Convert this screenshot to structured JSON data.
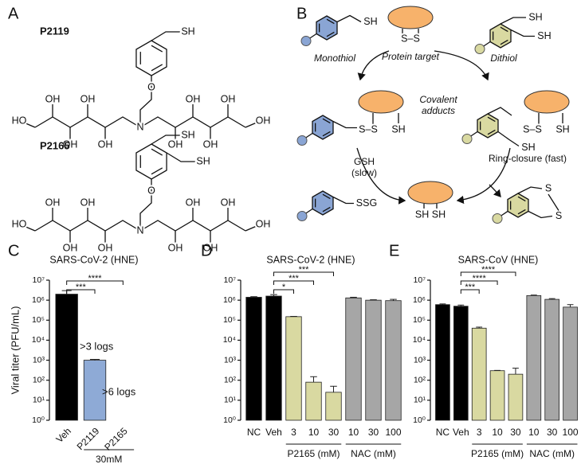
{
  "figure": {
    "A": {
      "panel_label": "A",
      "molecules": [
        {
          "name": "P2119",
          "thiols": [
            "SH"
          ],
          "linker": "O",
          "amine": "N",
          "left_hydroxyls": [
            "HO",
            "OH",
            "OH",
            "OH",
            "OH"
          ],
          "right_hydroxyls": [
            "OH",
            "OH",
            "OH",
            "OH",
            "OH"
          ]
        },
        {
          "name": "P2165",
          "thiols": [
            "SH",
            "SH"
          ],
          "linker": "O",
          "amine": "N",
          "left_hydroxyls": [
            "HO",
            "OH",
            "OH",
            "OH",
            "OH"
          ],
          "right_hydroxyls": [
            "OH",
            "OH",
            "OH",
            "OH",
            "OH"
          ]
        }
      ]
    },
    "B": {
      "panel_label": "B",
      "labels": [
        "SH",
        "Monothiol",
        "Protein target",
        "S–S",
        "SH",
        "SH",
        "Dithiol",
        "S–S",
        "SH",
        "S–S",
        "SH",
        "SH",
        "SSG",
        "SH SH",
        "S",
        "S"
      ],
      "notes": [
        "Covalent adducts",
        "GSH (slow)",
        "Ring-closure (fast)"
      ]
    }
  },
  "chart_data": [
    {
      "type": "bar",
      "panel_label": "C",
      "title": "SARS-CoV-2 (HNE)",
      "y_label": "Viral titer (PFU/mL)",
      "log_y": true,
      "ylim": [
        1,
        10000000
      ],
      "yticks": [
        {
          "value": 1,
          "label": "10⁰"
        },
        {
          "value": 10,
          "label": "10¹"
        },
        {
          "value": 100,
          "label": "10²"
        },
        {
          "value": 1000,
          "label": "10³"
        },
        {
          "value": 10000,
          "label": "10⁴"
        },
        {
          "value": 100000,
          "label": "10⁵"
        },
        {
          "value": 1000000,
          "label": "10⁶"
        },
        {
          "value": 10000000,
          "label": "10⁷"
        }
      ],
      "categories": [
        "Veh",
        "P2119",
        "P2165"
      ],
      "values": [
        2000000,
        1000,
        null
      ],
      "errors": [
        1000000,
        100,
        null
      ],
      "colors": [
        "#000000",
        "#8eaad6",
        null
      ],
      "groups": [
        {
          "label": "30mM",
          "start": 1,
          "end": 2
        }
      ],
      "annotations": [
        ">3 logs",
        ">6 logs"
      ],
      "significance": [
        {
          "label": "***",
          "from": 0,
          "to": 1
        },
        {
          "label": "****",
          "from": 0,
          "to": 2
        }
      ]
    },
    {
      "type": "bar",
      "panel_label": "D",
      "title": "SARS-CoV-2 (HNE)",
      "log_y": true,
      "ylim": [
        1,
        10000000
      ],
      "yticks": [
        {
          "value": 1,
          "label": "10⁰"
        },
        {
          "value": 10,
          "label": "10¹"
        },
        {
          "value": 100,
          "label": "10²"
        },
        {
          "value": 1000,
          "label": "10³"
        },
        {
          "value": 10000,
          "label": "10⁴"
        },
        {
          "value": 100000,
          "label": "10⁵"
        },
        {
          "value": 1000000,
          "label": "10⁶"
        },
        {
          "value": 10000000,
          "label": "10⁷"
        }
      ],
      "categories": [
        "NC",
        "Veh",
        "3",
        "10",
        "30",
        "10",
        "30",
        "100"
      ],
      "values": [
        1400000,
        1600000,
        150000,
        80,
        25,
        1300000,
        1000000,
        950000
      ],
      "errors": [
        100000,
        300000,
        5000,
        70,
        25,
        100000,
        50000,
        150000
      ],
      "colors": [
        "#000000",
        "#000000",
        "#d9d9a1",
        "#d9d9a1",
        "#d9d9a1",
        "#a6a6a6",
        "#a6a6a6",
        "#a6a6a6"
      ],
      "groups": [
        {
          "label": "P2165 (mM)",
          "start": 2,
          "end": 4
        },
        {
          "label": "NAC (mM)",
          "start": 5,
          "end": 7
        }
      ],
      "significance": [
        {
          "label": "*",
          "from": 1,
          "to": 2
        },
        {
          "label": "***",
          "from": 1,
          "to": 3
        },
        {
          "label": "***",
          "from": 1,
          "to": 4
        }
      ]
    },
    {
      "type": "bar",
      "panel_label": "E",
      "title": "SARS-CoV (HNE)",
      "log_y": true,
      "ylim": [
        1,
        10000000
      ],
      "yticks": [
        {
          "value": 1,
          "label": "10⁰"
        },
        {
          "value": 10,
          "label": "10¹"
        },
        {
          "value": 100,
          "label": "10²"
        },
        {
          "value": 1000,
          "label": "10³"
        },
        {
          "value": 10000,
          "label": "10⁴"
        },
        {
          "value": 100000,
          "label": "10⁵"
        },
        {
          "value": 1000000,
          "label": "10⁶"
        },
        {
          "value": 10000000,
          "label": "10⁷"
        }
      ],
      "categories": [
        "NC",
        "Veh",
        "3",
        "10",
        "30",
        "10",
        "30",
        "100"
      ],
      "values": [
        600000,
        500000,
        40000,
        300,
        200,
        1700000,
        1100000,
        450000
      ],
      "errors": [
        50000,
        70000,
        5000,
        10,
        200,
        100000,
        100000,
        150000
      ],
      "colors": [
        "#000000",
        "#000000",
        "#d9d9a1",
        "#d9d9a1",
        "#d9d9a1",
        "#a6a6a6",
        "#a6a6a6",
        "#a6a6a6"
      ],
      "groups": [
        {
          "label": "P2165 (mM)",
          "start": 2,
          "end": 4
        },
        {
          "label": "NAC (mM)",
          "start": 5,
          "end": 7
        }
      ],
      "significance": [
        {
          "label": "***",
          "from": 1,
          "to": 2
        },
        {
          "label": "****",
          "from": 1,
          "to": 3
        },
        {
          "label": "****",
          "from": 1,
          "to": 4
        }
      ]
    }
  ]
}
